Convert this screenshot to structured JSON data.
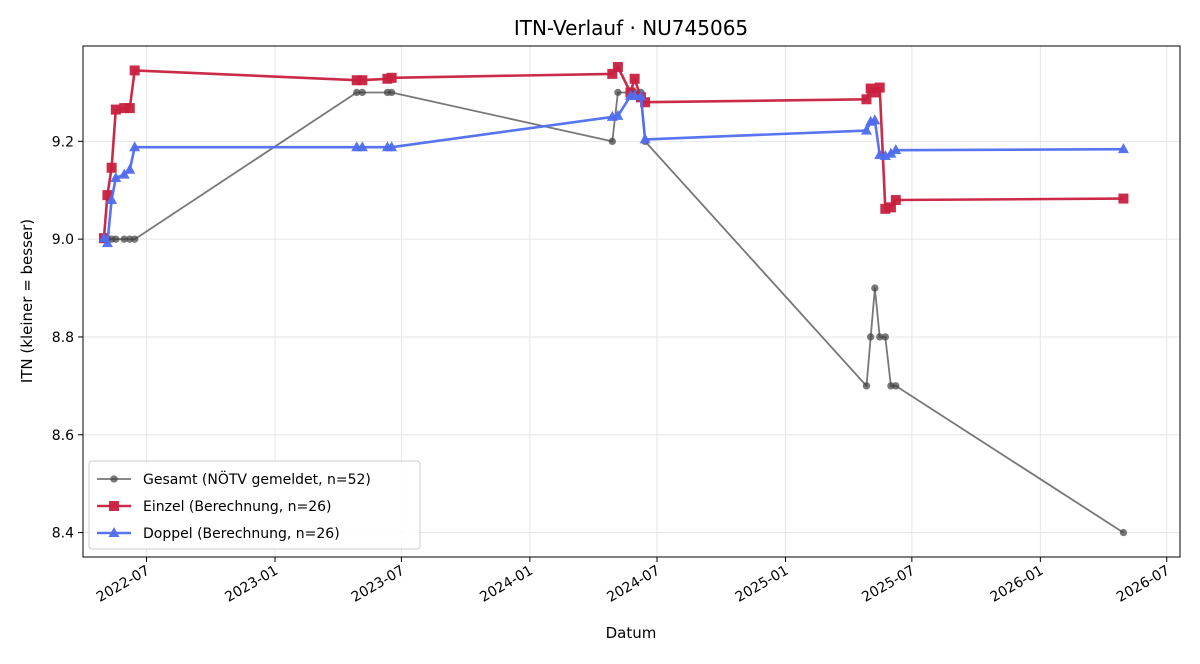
{
  "chart_data": {
    "type": "line",
    "title": "ITN-Verlauf · NU745065",
    "xlabel": "Datum",
    "ylabel": "ITN  (kleiner = besser)",
    "x_type": "date",
    "xlim": [
      "2022-04-01",
      "2026-07-20"
    ],
    "ylim": [
      8.35,
      9.395
    ],
    "x_ticks": [
      "2022-07-01",
      "2023-01-01",
      "2023-07-01",
      "2024-01-01",
      "2024-07-01",
      "2025-01-01",
      "2025-07-01",
      "2026-01-01",
      "2026-07-01"
    ],
    "x_tick_labels": [
      "2022-07",
      "2023-01",
      "2023-07",
      "2024-01",
      "2024-07",
      "2025-01",
      "2025-07",
      "2026-01",
      "2026-07"
    ],
    "y_ticks": [
      8.4,
      8.6,
      8.8,
      9.0,
      9.2
    ],
    "y_tick_labels": [
      "8.4",
      "8.6",
      "8.8",
      "9.0",
      "9.2"
    ],
    "grid": true,
    "legend_position": "bottom-left",
    "series": [
      {
        "name": "Gesamt (NÖTV gemeldet, n=52)",
        "color": "#444444",
        "marker": "circle",
        "x": [
          "2022-05-01",
          "2022-05-06",
          "2022-05-12",
          "2022-05-18",
          "2022-05-30",
          "2022-06-07",
          "2022-06-14",
          "2023-04-28",
          "2023-05-06",
          "2023-06-11",
          "2023-06-17",
          "2024-04-28",
          "2024-05-06",
          "2024-05-30",
          "2024-06-08",
          "2024-06-14",
          "2025-04-27",
          "2025-05-03",
          "2025-05-09",
          "2025-05-16",
          "2025-05-24",
          "2025-06-01",
          "2025-06-08",
          "2026-04-30"
        ],
        "y": [
          9.0,
          9.0,
          9.0,
          9.0,
          9.0,
          9.0,
          9.0,
          9.3,
          9.3,
          9.3,
          9.3,
          9.2,
          9.3,
          9.3,
          9.3,
          9.2,
          8.7,
          8.8,
          8.9,
          8.8,
          8.8,
          8.7,
          8.7,
          8.4
        ]
      },
      {
        "name": "Einzel (Berechnung, n=26)",
        "color": "#c8203e",
        "marker": "square",
        "x": [
          "2022-05-01",
          "2022-05-06",
          "2022-05-12",
          "2022-05-18",
          "2022-05-30",
          "2022-06-07",
          "2022-06-14",
          "2023-04-28",
          "2023-05-06",
          "2023-06-11",
          "2023-06-17",
          "2024-04-28",
          "2024-05-06",
          "2024-05-24",
          "2024-05-30",
          "2024-06-08",
          "2024-06-14",
          "2025-04-27",
          "2025-05-03",
          "2025-05-09",
          "2025-05-16",
          "2025-05-24",
          "2025-06-01",
          "2025-06-08",
          "2026-04-30"
        ],
        "y": [
          9.002,
          9.09,
          9.146,
          9.265,
          9.268,
          9.268,
          9.345,
          9.325,
          9.325,
          9.328,
          9.33,
          9.338,
          9.352,
          9.3,
          9.328,
          9.29,
          9.28,
          9.286,
          9.308,
          9.3,
          9.31,
          9.062,
          9.065,
          9.08,
          9.083
        ]
      },
      {
        "name": "Doppel (Berechnung, n=26)",
        "color": "#4f6df0",
        "marker": "triangle",
        "x": [
          "2022-05-01",
          "2022-05-06",
          "2022-05-12",
          "2022-05-18",
          "2022-05-30",
          "2022-06-07",
          "2022-06-14",
          "2023-04-28",
          "2023-05-06",
          "2023-06-11",
          "2023-06-17",
          "2024-04-28",
          "2024-05-06",
          "2024-05-24",
          "2024-05-30",
          "2024-06-08",
          "2024-06-14",
          "2025-04-27",
          "2025-05-03",
          "2025-05-09",
          "2025-05-16",
          "2025-05-24",
          "2025-06-01",
          "2025-06-08",
          "2026-04-30"
        ],
        "y": [
          9.002,
          8.992,
          9.08,
          9.125,
          9.132,
          9.142,
          9.188,
          9.188,
          9.188,
          9.188,
          9.188,
          9.25,
          9.252,
          9.293,
          9.293,
          9.292,
          9.204,
          9.222,
          9.24,
          9.243,
          9.172,
          9.17,
          9.175,
          9.182,
          9.184
        ]
      }
    ]
  }
}
